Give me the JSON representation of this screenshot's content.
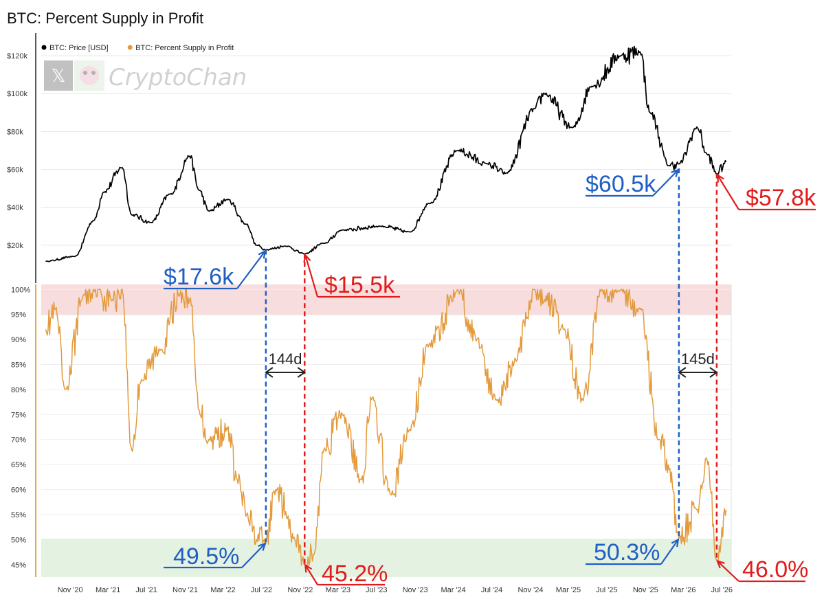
{
  "title": "BTC: Percent Supply in Profit",
  "colors": {
    "price": "#000000",
    "supply": "#e39a3c",
    "blue": "#1f5fc4",
    "red": "#e21b1b",
    "band_red": "#f5d4d4",
    "band_green": "#dcefd9",
    "grid": "#e6e6e6",
    "axis_accent": "#e3a84a"
  },
  "watermark": {
    "text": "CryptoChan",
    "icons": [
      "x-logo-icon",
      "avatar-icon"
    ]
  },
  "legend": [
    {
      "label": "BTC: Price [USD]",
      "color": "#000000"
    },
    {
      "label": "BTC: Percent Supply in Profit",
      "color": "#e39a3c"
    }
  ],
  "chart_data": [
    {
      "type": "line",
      "title": "",
      "series": [
        {
          "name": "BTC: Price [USD]"
        }
      ],
      "y_ticks": [
        "$20k",
        "$40k",
        "$60k",
        "$80k",
        "$100k",
        "$120k"
      ],
      "y_tick_values": [
        20000,
        40000,
        60000,
        80000,
        100000,
        120000
      ],
      "ylim": [
        0,
        132000
      ],
      "x": [
        "2020-08",
        "2020-11",
        "2021-01",
        "2021-02",
        "2021-04",
        "2021-05",
        "2021-07",
        "2021-09",
        "2021-11",
        "2021-12",
        "2022-01",
        "2022-03",
        "2022-05",
        "2022-06",
        "2022-07",
        "2022-09",
        "2022-11",
        "2023-01",
        "2023-03",
        "2023-07",
        "2023-10",
        "2023-12",
        "2024-03",
        "2024-06",
        "2024-08",
        "2024-11",
        "2024-12",
        "2025-03",
        "2025-05",
        "2025-08",
        "2025-10",
        "2025-11",
        "2026-01",
        "2026-02",
        "2026-04",
        "2026-05",
        "2026-06",
        "2026-07"
      ],
      "values": [
        11500,
        14000,
        33000,
        48000,
        61000,
        36000,
        32000,
        47000,
        67000,
        49000,
        38000,
        44000,
        31000,
        20000,
        17600,
        19500,
        15500,
        21000,
        28000,
        30000,
        27000,
        42000,
        70000,
        63000,
        58000,
        92000,
        100000,
        82000,
        104000,
        120000,
        122000,
        90000,
        62000,
        63000,
        82000,
        68000,
        57800,
        64000
      ]
    },
    {
      "type": "line",
      "title": "",
      "series": [
        {
          "name": "BTC: Percent Supply in Profit"
        }
      ],
      "y_ticks": [
        "45%",
        "50%",
        "55%",
        "60%",
        "65%",
        "70%",
        "75%",
        "80%",
        "85%",
        "90%",
        "95%",
        "100%"
      ],
      "y_tick_values": [
        45,
        50,
        55,
        60,
        65,
        70,
        75,
        80,
        85,
        90,
        95,
        100
      ],
      "ylim": [
        42.5,
        101
      ],
      "bands": [
        {
          "from": 95,
          "to": 101,
          "color": "red"
        },
        {
          "from": 42.5,
          "to": 50,
          "color": "green"
        }
      ],
      "x": [
        "2020-08",
        "2020-09",
        "2020-10",
        "2020-12",
        "2021-01",
        "2021-03",
        "2021-04",
        "2021-05",
        "2021-06",
        "2021-08",
        "2021-10",
        "2021-11",
        "2021-12",
        "2022-01",
        "2022-03",
        "2022-04",
        "2022-05",
        "2022-06",
        "2022-07",
        "2022-08",
        "2022-10",
        "2022-11",
        "2022-12",
        "2023-01",
        "2023-03",
        "2023-05",
        "2023-06",
        "2023-08",
        "2023-10",
        "2023-12",
        "2024-03",
        "2024-05",
        "2024-07",
        "2024-09",
        "2024-11",
        "2024-12",
        "2025-02",
        "2025-04",
        "2025-06",
        "2025-08",
        "2025-10",
        "2025-12",
        "2026-01",
        "2026-02",
        "2026-04",
        "2026-05",
        "2026-06",
        "2026-07"
      ],
      "values": [
        92,
        96,
        80,
        99,
        100,
        98,
        100,
        68,
        82,
        88,
        99,
        98,
        76,
        70,
        72,
        62,
        55,
        50,
        49.5,
        60,
        50,
        45.2,
        47,
        68,
        75,
        62,
        78,
        59,
        72,
        89,
        100,
        90,
        78,
        86,
        100,
        98,
        92,
        78,
        100,
        100,
        96,
        70,
        64,
        50.3,
        56,
        66,
        46,
        56
      ]
    }
  ],
  "x_ticks": [
    "Nov '20",
    "Mar '21",
    "Jul '21",
    "Nov '21",
    "Mar '22",
    "Jul '22",
    "Nov '22",
    "Mar '23",
    "Jul '23",
    "Nov '23",
    "Mar '24",
    "Jul '24",
    "Nov '24",
    "Mar '25",
    "Jul '25",
    "Nov '25",
    "Mar '26",
    "Jul '26"
  ],
  "annotations": {
    "price_lows": [
      {
        "label": "$17.6k",
        "date": "2022-07",
        "color": "blue"
      },
      {
        "label": "$15.5k",
        "date": "2022-11",
        "color": "red"
      },
      {
        "label": "$60.5k",
        "date": "2026-02",
        "color": "blue"
      },
      {
        "label": "$57.8k",
        "date": "2026-06",
        "color": "red"
      }
    ],
    "supply_lows": [
      {
        "label": "49.5%",
        "date": "2022-07",
        "color": "blue"
      },
      {
        "label": "45.2%",
        "date": "2022-11",
        "color": "red"
      },
      {
        "label": "50.3%",
        "date": "2026-02",
        "color": "blue"
      },
      {
        "label": "46.0%",
        "date": "2026-06",
        "color": "red"
      }
    ],
    "spans": [
      {
        "label": "144d"
      },
      {
        "label": "145d"
      }
    ]
  }
}
